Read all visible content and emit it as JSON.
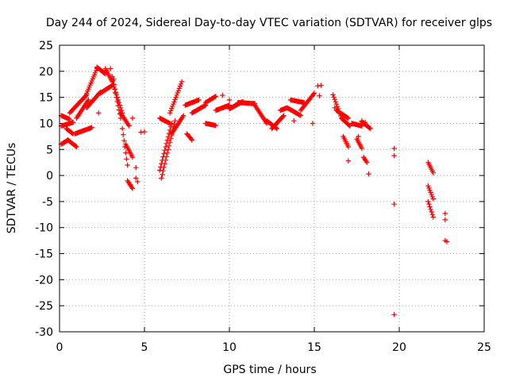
{
  "chart_data": {
    "type": "scatter",
    "title": "Day 244 of 2024, Sidereal Day-to-day VTEC variation (SDTVAR) for receiver glps",
    "xlabel": "GPS time / hours",
    "ylabel": "SDTVAR / TECUs",
    "xlim": [
      0,
      25
    ],
    "ylim": [
      -30,
      25
    ],
    "xticks": [
      0,
      5,
      10,
      15,
      20,
      25
    ],
    "yticks": [
      -30,
      -25,
      -20,
      -15,
      -10,
      -5,
      0,
      5,
      10,
      15,
      20,
      25
    ],
    "grid": true,
    "marker": "plus",
    "color": "#ff0000",
    "segments": [
      {
        "name": "track-01",
        "x0": 0.1,
        "x1": 0.6,
        "y0": 11.5,
        "y1": 10.8
      },
      {
        "name": "track-02",
        "x0": 0.1,
        "x1": 0.8,
        "y0": 9.5,
        "y1": 10.2
      },
      {
        "name": "track-03",
        "x0": 0.1,
        "x1": 0.5,
        "y0": 6.0,
        "y1": 6.8
      },
      {
        "name": "track-04",
        "x0": 0.5,
        "x1": 1.0,
        "y0": 6.8,
        "y1": 5.5
      },
      {
        "name": "track-05",
        "x0": 0.4,
        "x1": 0.8,
        "y0": 9.0,
        "y1": 8.0
      },
      {
        "name": "track-06",
        "x0": 0.6,
        "x1": 1.6,
        "y0": 12.0,
        "y1": 15.5
      },
      {
        "name": "track-07",
        "x0": 0.9,
        "x1": 1.9,
        "y0": 8.0,
        "y1": 9.2
      },
      {
        "name": "track-08",
        "x0": 1.0,
        "x1": 1.7,
        "y0": 11.0,
        "y1": 14.5
      },
      {
        "name": "track-09",
        "x0": 1.5,
        "x1": 2.2,
        "y0": 15.0,
        "y1": 20.5
      },
      {
        "name": "track-10",
        "x0": 1.6,
        "x1": 2.4,
        "y0": 13.0,
        "y1": 16.0
      },
      {
        "name": "track-11",
        "x0": 2.2,
        "x1": 2.7,
        "y0": 20.8,
        "y1": 19.5
      },
      {
        "name": "track-12",
        "x0": 2.4,
        "x1": 3.2,
        "y0": 15.8,
        "y1": 17.5
      },
      {
        "name": "track-13",
        "x0": 2.7,
        "x1": 3.1,
        "y0": 20.5,
        "y1": 18.0
      },
      {
        "name": "track-14",
        "x0": 3.1,
        "x1": 3.6,
        "y0": 19.0,
        "y1": 11.0
      },
      {
        "name": "track-15",
        "x0": 3.2,
        "x1": 3.7,
        "y0": 17.0,
        "y1": 12.0
      },
      {
        "name": "track-16",
        "x0": 3.6,
        "x1": 4.1,
        "y0": 12.0,
        "y1": 9.5
      },
      {
        "name": "track-17",
        "x0": 3.7,
        "x1": 4.0,
        "y0": 9.0,
        "y1": 2.0
      },
      {
        "name": "track-18",
        "x0": 3.9,
        "x1": 4.3,
        "y0": 6.0,
        "y1": 3.5
      },
      {
        "name": "track-19",
        "x0": 4.0,
        "x1": 4.3,
        "y0": -1.0,
        "y1": -2.5
      },
      {
        "name": "track-20",
        "x0": 4.5,
        "x1": 4.5,
        "y0": -0.5,
        "y1": 1.5
      },
      {
        "name": "track-21",
        "x0": 5.9,
        "x1": 6.5,
        "y0": 11.0,
        "y1": 10.0
      },
      {
        "name": "track-22",
        "x0": 5.9,
        "x1": 6.6,
        "y0": 1.0,
        "y1": 10.0
      },
      {
        "name": "track-23",
        "x0": 6.0,
        "x1": 6.8,
        "y0": -0.5,
        "y1": 10.5
      },
      {
        "name": "track-24",
        "x0": 6.5,
        "x1": 7.2,
        "y0": 12.0,
        "y1": 18.0
      },
      {
        "name": "track-25",
        "x0": 6.6,
        "x1": 7.3,
        "y0": 8.0,
        "y1": 11.5
      },
      {
        "name": "track-26",
        "x0": 7.5,
        "x1": 7.8,
        "y0": 8.0,
        "y1": 6.8
      },
      {
        "name": "track-27",
        "x0": 7.4,
        "x1": 8.2,
        "y0": 13.5,
        "y1": 14.5
      },
      {
        "name": "track-28",
        "x0": 7.8,
        "x1": 8.6,
        "y0": 12.0,
        "y1": 13.5
      },
      {
        "name": "track-29",
        "x0": 8.6,
        "x1": 9.2,
        "y0": 14.0,
        "y1": 15.2
      },
      {
        "name": "track-30",
        "x0": 8.6,
        "x1": 9.2,
        "y0": 10.0,
        "y1": 9.6
      },
      {
        "name": "track-31",
        "x0": 9.2,
        "x1": 10.0,
        "y0": 12.5,
        "y1": 13.5
      },
      {
        "name": "track-32",
        "x0": 10.0,
        "x1": 10.8,
        "y0": 12.8,
        "y1": 14.2
      },
      {
        "name": "track-33",
        "x0": 10.5,
        "x1": 11.5,
        "y0": 14.0,
        "y1": 13.8
      },
      {
        "name": "track-34",
        "x0": 11.5,
        "x1": 12.2,
        "y0": 13.5,
        "y1": 10.0
      },
      {
        "name": "track-35",
        "x0": 12.2,
        "x1": 12.8,
        "y0": 10.5,
        "y1": 9.0
      },
      {
        "name": "track-36",
        "x0": 12.5,
        "x1": 13.2,
        "y0": 9.0,
        "y1": 11.5
      },
      {
        "name": "track-37",
        "x0": 13.0,
        "x1": 13.4,
        "y0": 12.5,
        "y1": 13.0
      },
      {
        "name": "track-38",
        "x0": 13.4,
        "x1": 14.2,
        "y0": 13.0,
        "y1": 11.5
      },
      {
        "name": "track-39",
        "x0": 13.6,
        "x1": 14.4,
        "y0": 14.5,
        "y1": 14.0
      },
      {
        "name": "track-40",
        "x0": 14.2,
        "x1": 15.0,
        "y0": 12.5,
        "y1": 15.8
      },
      {
        "name": "track-41",
        "x0": 16.1,
        "x1": 16.6,
        "y0": 15.5,
        "y1": 11.0
      },
      {
        "name": "track-42",
        "x0": 16.3,
        "x1": 17.0,
        "y0": 12.5,
        "y1": 11.0
      },
      {
        "name": "track-43",
        "x0": 16.6,
        "x1": 17.1,
        "y0": 11.0,
        "y1": 9.5
      },
      {
        "name": "track-44",
        "x0": 16.7,
        "x1": 17.0,
        "y0": 7.5,
        "y1": 5.5
      },
      {
        "name": "track-45",
        "x0": 17.2,
        "x1": 17.8,
        "y0": 10.0,
        "y1": 9.5
      },
      {
        "name": "track-46",
        "x0": 17.5,
        "x1": 17.8,
        "y0": 7.0,
        "y1": 5.2
      },
      {
        "name": "track-47",
        "x0": 17.8,
        "x1": 18.3,
        "y0": 10.3,
        "y1": 9.0
      },
      {
        "name": "track-48",
        "x0": 17.9,
        "x1": 18.1,
        "y0": 3.5,
        "y1": 2.5
      },
      {
        "name": "track-49",
        "x0": 21.7,
        "x1": 22.0,
        "y0": 2.5,
        "y1": 0.5
      },
      {
        "name": "track-50",
        "x0": 21.7,
        "x1": 22.0,
        "y0": -2.0,
        "y1": -4.5
      },
      {
        "name": "track-51",
        "x0": 21.7,
        "x1": 22.0,
        "y0": -5.0,
        "y1": -8.0
      }
    ],
    "points": [
      {
        "x": 2.3,
        "y": 12.0
      },
      {
        "x": 3.0,
        "y": 20.5
      },
      {
        "x": 3.2,
        "y": 18.5
      },
      {
        "x": 4.3,
        "y": 11.0
      },
      {
        "x": 4.8,
        "y": 8.3
      },
      {
        "x": 5.0,
        "y": 8.4
      },
      {
        "x": 4.6,
        "y": -1.2
      },
      {
        "x": 9.6,
        "y": 15.4
      },
      {
        "x": 10.0,
        "y": 14.5
      },
      {
        "x": 13.8,
        "y": 10.5
      },
      {
        "x": 14.9,
        "y": 10.0
      },
      {
        "x": 15.3,
        "y": 15.3
      },
      {
        "x": 15.2,
        "y": 17.2
      },
      {
        "x": 15.4,
        "y": 17.3
      },
      {
        "x": 16.2,
        "y": 13.0
      },
      {
        "x": 17.6,
        "y": 7.5
      },
      {
        "x": 17.8,
        "y": 10.5
      },
      {
        "x": 18.0,
        "y": 10.2
      },
      {
        "x": 18.2,
        "y": 0.3
      },
      {
        "x": 17.0,
        "y": 2.8
      },
      {
        "x": 19.7,
        "y": 5.2
      },
      {
        "x": 19.7,
        "y": 3.8
      },
      {
        "x": 19.7,
        "y": -5.5
      },
      {
        "x": 19.7,
        "y": -26.7
      },
      {
        "x": 22.7,
        "y": -7.3
      },
      {
        "x": 22.7,
        "y": -8.5
      },
      {
        "x": 22.7,
        "y": -12.5
      },
      {
        "x": 22.8,
        "y": -12.7
      }
    ]
  }
}
